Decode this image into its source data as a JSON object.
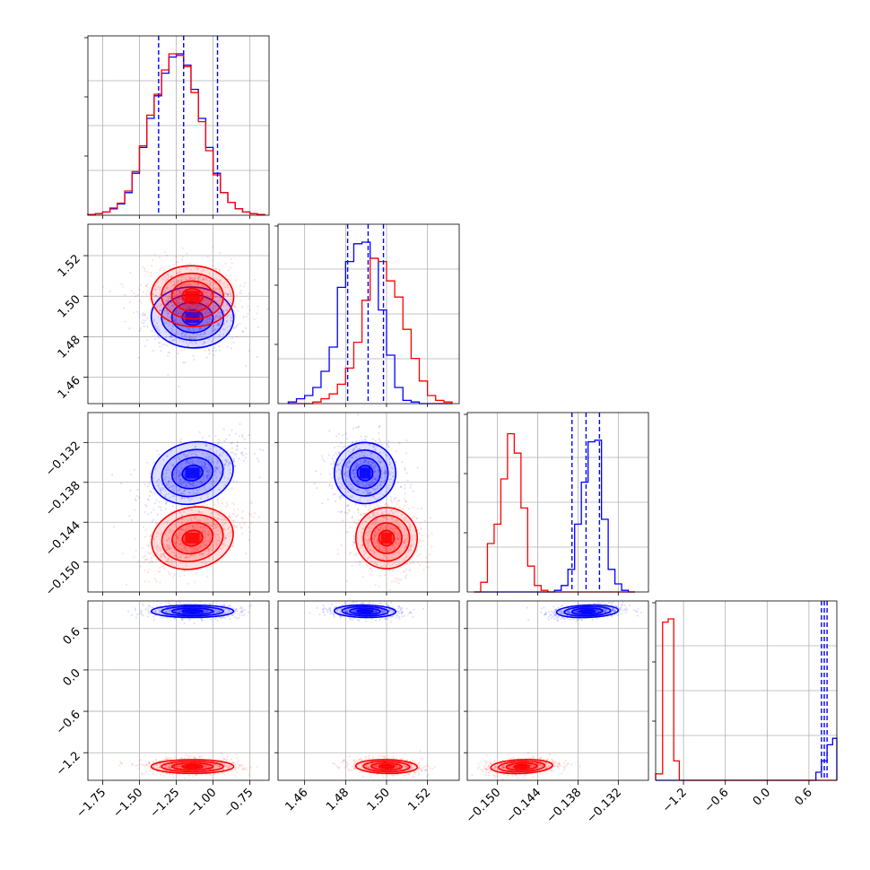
{
  "chart_data": {
    "type": "corner",
    "colors": {
      "blue": "#0000ff",
      "red": "#ff0000",
      "grid": "#b0b0b0",
      "frame": "#000000"
    },
    "parameters": [
      {
        "range": [
          -1.85,
          -0.62
        ],
        "ticks": [
          -1.75,
          -1.5,
          -1.25,
          -1.0,
          -0.75
        ],
        "tick_labels": [
          "−1.75",
          "−1.50",
          "−1.25",
          "−1.00",
          "−0.75"
        ]
      },
      {
        "range": [
          1.447,
          1.5355
        ],
        "ticks": [
          1.46,
          1.48,
          1.5,
          1.52
        ],
        "tick_labels": [
          "1.46",
          "1.48",
          "1.50",
          "1.52"
        ]
      },
      {
        "range": [
          -0.1545,
          -0.1275
        ],
        "ticks": [
          -0.15,
          -0.144,
          -0.138,
          -0.132
        ],
        "tick_labels": [
          "−0.150",
          "−0.144",
          "−0.138",
          "−0.132"
        ]
      },
      {
        "range": [
          -1.6,
          1.0
        ],
        "ticks": [
          -1.2,
          -0.6,
          0.0,
          0.6
        ],
        "tick_labels": [
          "−1.2",
          "−0.6",
          "0.0",
          "0.6"
        ]
      }
    ],
    "series": [
      {
        "color": "blue",
        "mean": [
          -1.14,
          1.4895,
          -0.1366,
          0.85
        ],
        "std": [
          0.14,
          0.0075,
          0.0023,
          0.045
        ],
        "quantiles": [
          [
            -1.37,
            -1.2,
            -0.97
          ],
          [
            1.481,
            1.491,
            1.4985
          ],
          [
            -0.1389,
            -0.1368,
            -0.1348
          ],
          [
            0.78,
            0.82,
            0.86
          ]
        ]
      },
      {
        "color": "red",
        "mean": [
          -1.14,
          1.5,
          -0.1464,
          -1.4
        ],
        "std": [
          0.14,
          0.0075,
          0.0023,
          0.05
        ]
      }
    ],
    "hist_data": [
      {
        "x": [
          -1.85,
          -1.8,
          -1.75,
          -1.7,
          -1.65,
          -1.6,
          -1.55,
          -1.5,
          -1.45,
          -1.4,
          -1.35,
          -1.3,
          -1.25,
          -1.2,
          -1.15,
          -1.1,
          -1.05,
          -1.0,
          -0.95,
          -0.9,
          -0.85,
          -0.8,
          -0.75,
          -0.7,
          -0.65,
          -0.62
        ],
        "blue": [
          0.005,
          0.01,
          0.02,
          0.04,
          0.07,
          0.14,
          0.26,
          0.42,
          0.6,
          0.74,
          0.88,
          0.98,
          1.0,
          0.93,
          0.78,
          0.6,
          0.42,
          0.26,
          0.14,
          0.08,
          0.04,
          0.02,
          0.01,
          0.005
        ],
        "red": [
          0.005,
          0.01,
          0.02,
          0.045,
          0.075,
          0.15,
          0.27,
          0.43,
          0.62,
          0.75,
          0.9,
          1.0,
          0.99,
          0.92,
          0.76,
          0.58,
          0.4,
          0.25,
          0.14,
          0.08,
          0.04,
          0.02,
          0.01,
          0.005
        ]
      },
      {
        "x": [
          1.452,
          1.456,
          1.46,
          1.464,
          1.468,
          1.472,
          1.476,
          1.48,
          1.484,
          1.488,
          1.492,
          1.496,
          1.5,
          1.504,
          1.508,
          1.512,
          1.516,
          1.52,
          1.524,
          1.528,
          1.532
        ],
        "blue": [
          0.01,
          0.03,
          0.05,
          0.1,
          0.2,
          0.35,
          0.72,
          0.88,
          0.99,
          1.0,
          0.9,
          0.58,
          0.3,
          0.1,
          0.02,
          0.01,
          0.0,
          0.0,
          0.0,
          0.0
        ],
        "red": [
          0.0,
          0.0,
          0.0,
          0.01,
          0.03,
          0.06,
          0.12,
          0.22,
          0.38,
          0.64,
          0.9,
          0.88,
          0.76,
          0.66,
          0.46,
          0.28,
          0.14,
          0.05,
          0.02,
          0.01
        ]
      },
      {
        "x": [
          -0.1535,
          -0.1525,
          -0.1515,
          -0.1505,
          -0.1495,
          -0.1485,
          -0.1475,
          -0.1465,
          -0.1455,
          -0.1445,
          -0.1435,
          -0.1425,
          -0.1415,
          -0.1405,
          -0.1395,
          -0.1385,
          -0.1375,
          -0.1365,
          -0.1355,
          -0.1345,
          -0.1335,
          -0.1325,
          -0.1315,
          -0.1305,
          -0.1295
        ],
        "blue": [
          0.0,
          0.0,
          0.0,
          0.0,
          0.0,
          0.0,
          0.0,
          0.0,
          0.0,
          0.0,
          0.0,
          0.0,
          0.01,
          0.04,
          0.14,
          0.42,
          0.68,
          0.93,
          0.94,
          0.45,
          0.14,
          0.05,
          0.01,
          0.0
        ],
        "red": [
          0.0,
          0.06,
          0.3,
          0.42,
          0.7,
          0.98,
          0.86,
          0.52,
          0.16,
          0.04,
          0.01,
          0.0,
          0.0,
          0.0,
          0.0,
          0.0,
          0.0,
          0.0,
          0.0,
          0.0,
          0.0,
          0.0,
          0.0,
          0.0
        ]
      },
      {
        "x": [
          -1.6,
          -1.5,
          -1.42,
          -1.34,
          -1.26,
          -1.18,
          0.7,
          0.78,
          0.86,
          0.94,
          1.0
        ],
        "blue": [
          0.0,
          0.0,
          0.0,
          0.0,
          0.0,
          0.0,
          0.05,
          0.12,
          0.22,
          0.26
        ],
        "red": [
          0.04,
          0.98,
          1.0,
          0.12,
          0.0,
          0.0,
          0.0,
          0.0,
          0.0,
          0.0
        ]
      }
    ]
  }
}
